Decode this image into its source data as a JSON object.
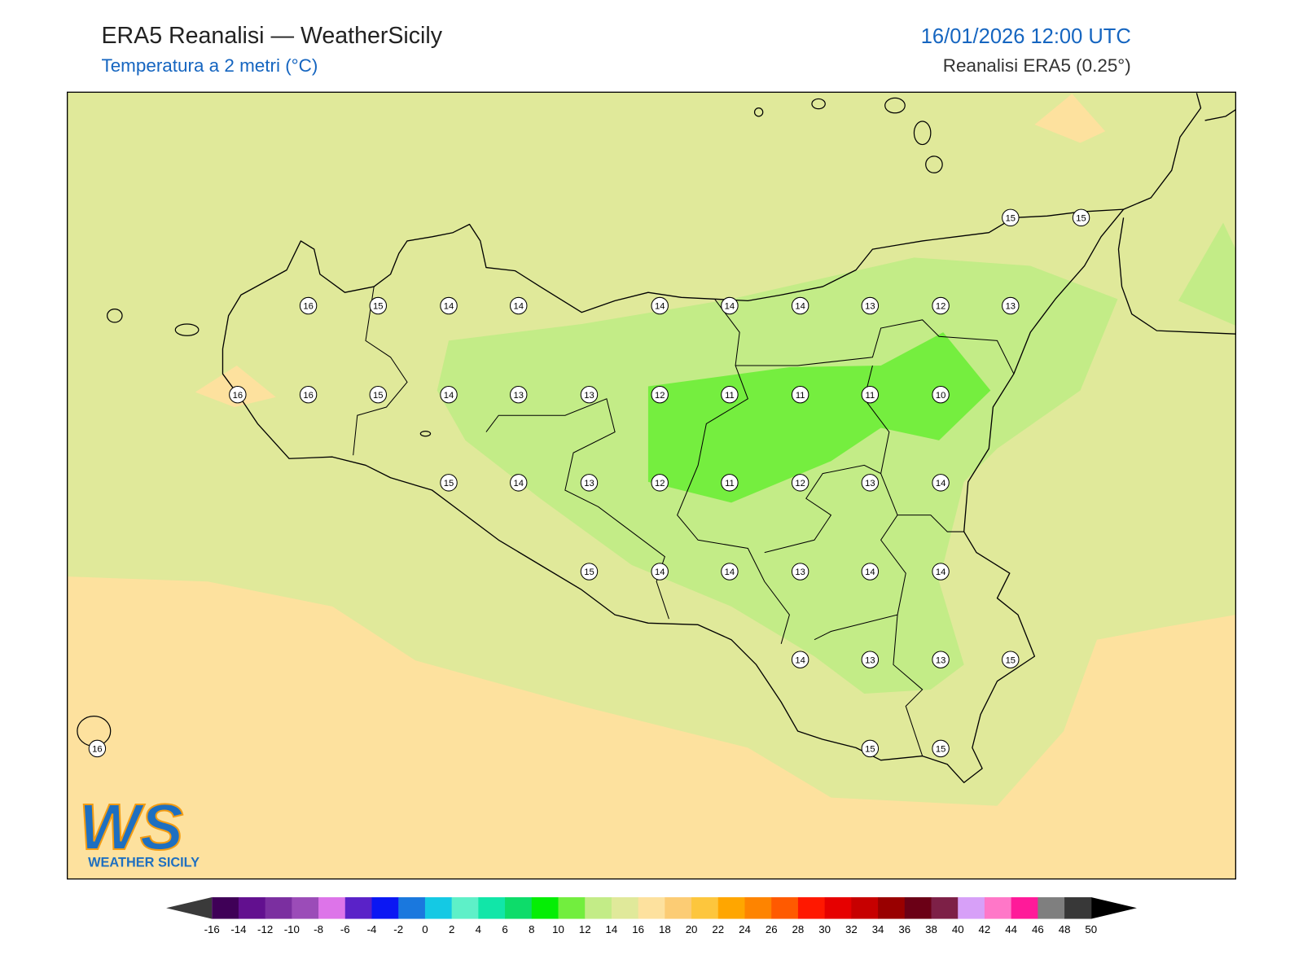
{
  "header": {
    "title": "ERA5 Reanalisi — WeatherSicily",
    "subtitle": "Temperatura a 2 metri (°C)",
    "date": "16/01/2026 12:00 UTC",
    "source": "Reanalisi ERA5 (0.25°)"
  },
  "stations": [
    15,
    15,
    16,
    15,
    14,
    14,
    14,
    14,
    14,
    13,
    12,
    13,
    16,
    16,
    15,
    14,
    13,
    13,
    12,
    11,
    11,
    11,
    10,
    15,
    14,
    13,
    12,
    11,
    12,
    13,
    14,
    15,
    14,
    14,
    13,
    14,
    14,
    14,
    13,
    13,
    15,
    16,
    15,
    15
  ],
  "logo": {
    "mark": "WS",
    "name": "WEATHER SICILY"
  },
  "colorbar": {
    "ticks": [
      -16,
      -14,
      -12,
      -10,
      -8,
      -6,
      -4,
      -2,
      0,
      2,
      4,
      6,
      8,
      10,
      12,
      14,
      16,
      18,
      20,
      22,
      24,
      26,
      28,
      30,
      32,
      34,
      36,
      38,
      40,
      42,
      44,
      46,
      48,
      50
    ],
    "colors": [
      "#3f0057",
      "#62108f",
      "#7b2fa0",
      "#9b4cb8",
      "#dd74e9",
      "#5a22c8",
      "#0b17f3",
      "#1a78de",
      "#14c9e4",
      "#5ef0c8",
      "#11e6a8",
      "#0ddc6a",
      "#05ee05",
      "#72ee3e",
      "#c3ec87",
      "#e0e99a",
      "#fde19e",
      "#fccc74",
      "#fdc63d",
      "#ffa600",
      "#fe8400",
      "#ff5a00",
      "#ff1800",
      "#e60000",
      "#c70000",
      "#990000",
      "#6b0016",
      "#7d2047",
      "#d7a0f8",
      "#ff77c8",
      "#ff1a99",
      "#7f7f7f",
      "#383838"
    ],
    "under_color": "#3a3a3a",
    "over_color": "#000000"
  }
}
